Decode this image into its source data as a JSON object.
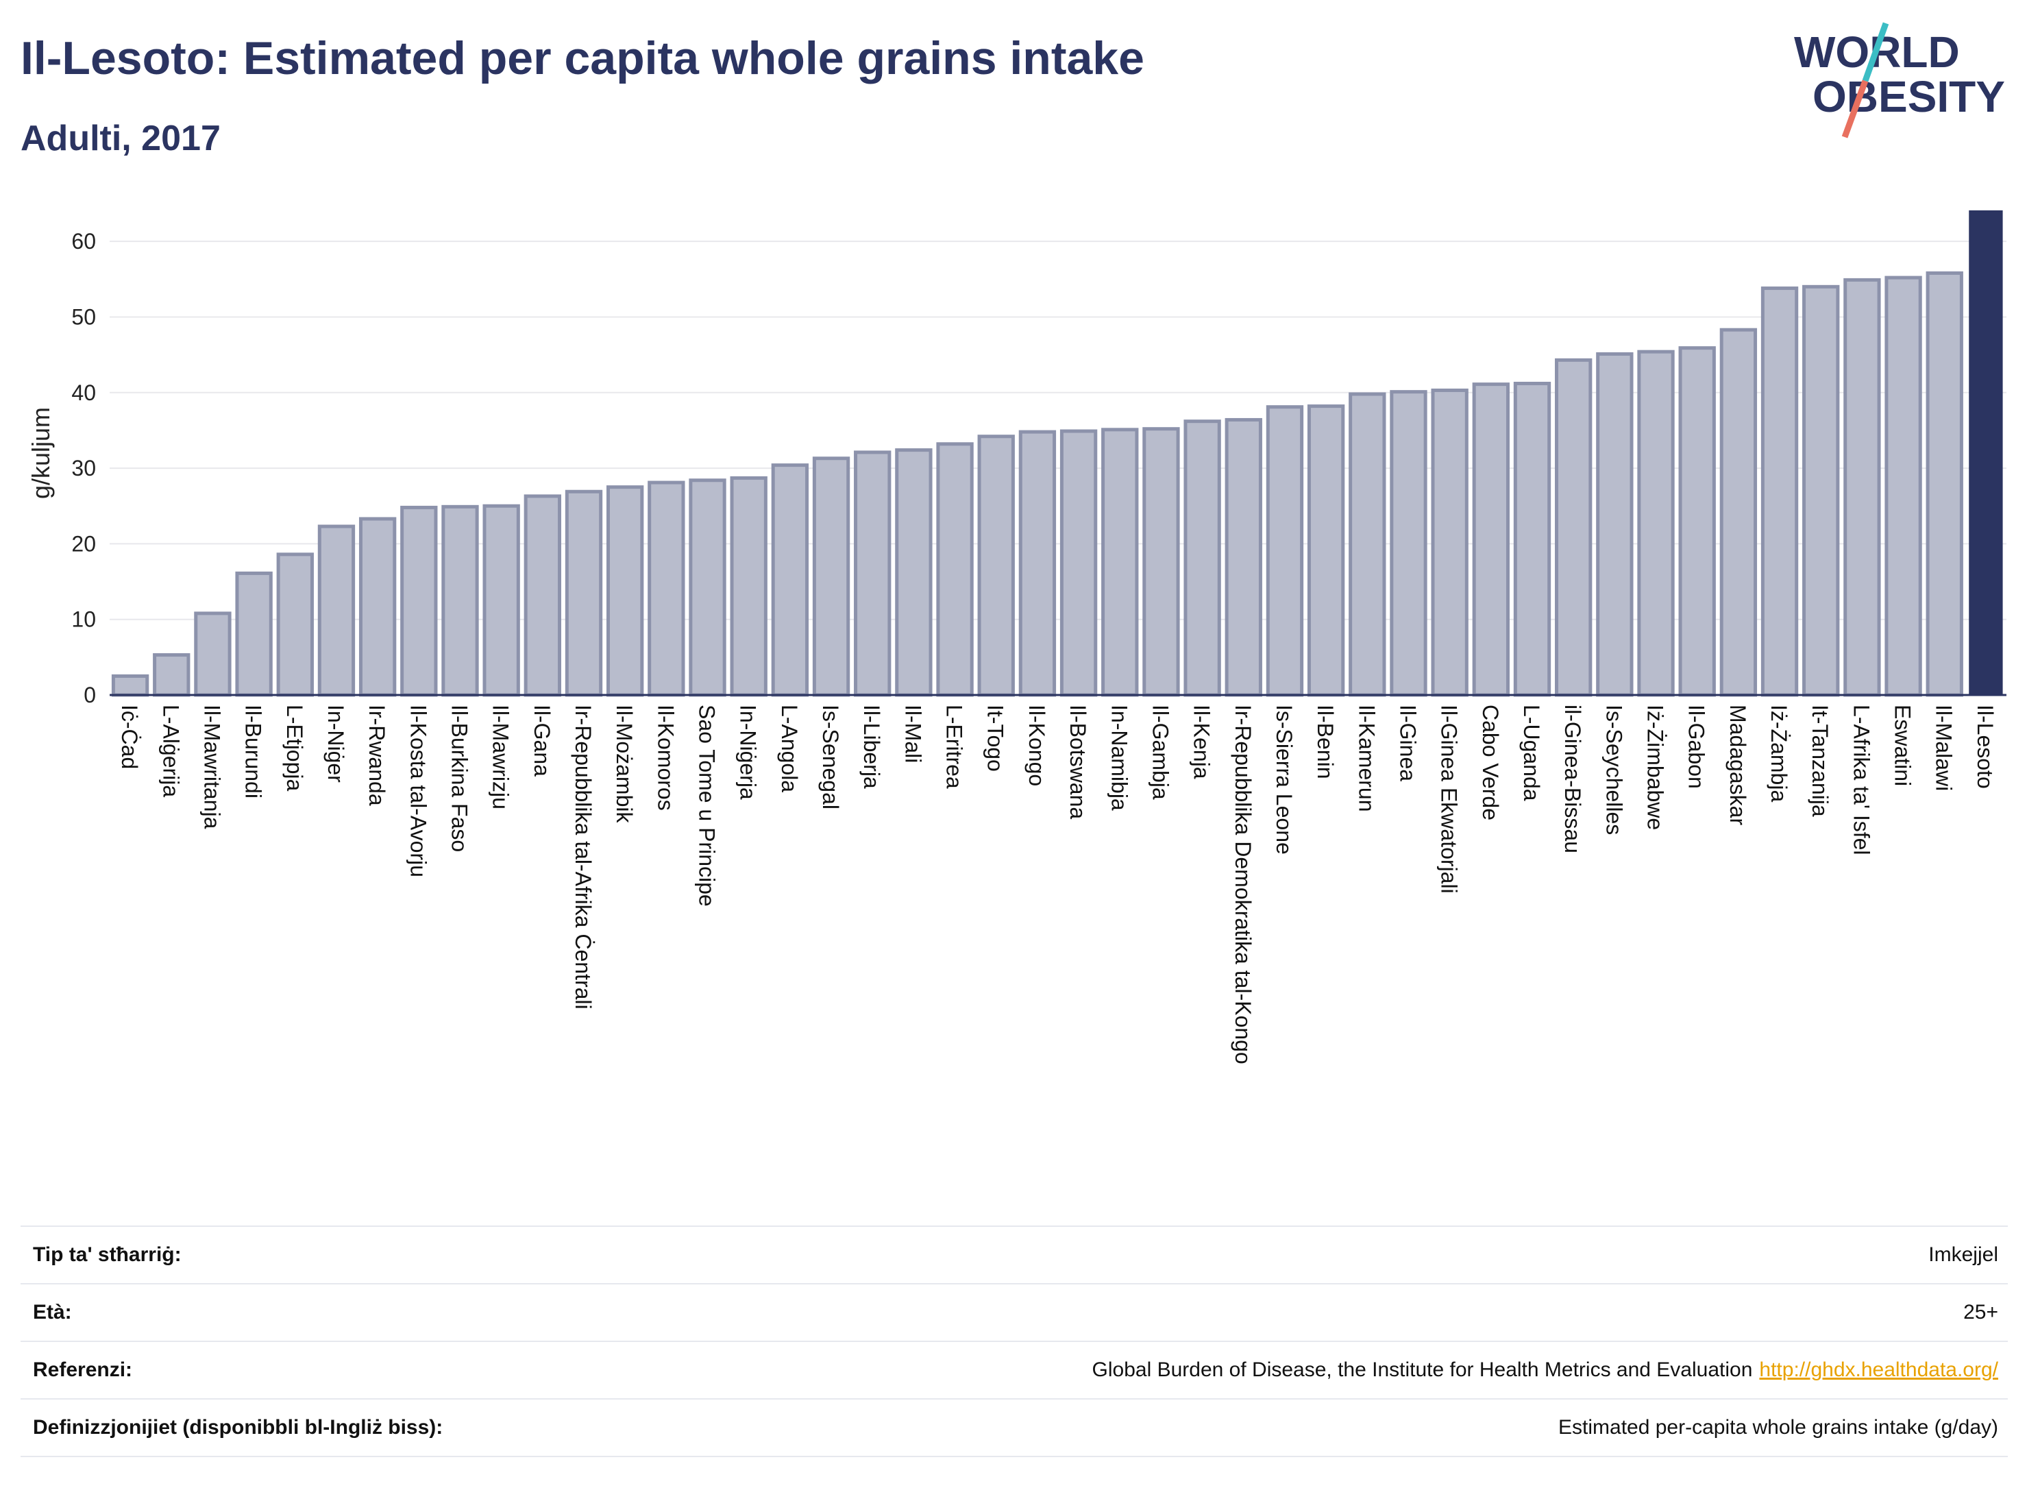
{
  "title": "Il-Lesoto: Estimated per capita whole grains intake",
  "subtitle": "Adulti, 2017",
  "logo": {
    "line1": "WORLD",
    "line2": "OBESITY",
    "accent_teal": "#3bbdc4",
    "accent_coral": "#e8705f"
  },
  "colors": {
    "bar": "#b8bccc",
    "bar_border": "#8c92ab",
    "highlight": "#2b3461",
    "grid": "#e8e8ec",
    "axis": "#2b3461"
  },
  "chart_data": {
    "type": "bar",
    "ylabel": "g/kuljum",
    "xlabel": "",
    "ylim": [
      0,
      64
    ],
    "yticks": [
      0,
      10,
      20,
      30,
      40,
      50,
      60
    ],
    "highlight": "Il-Lesoto",
    "categories": [
      "Iċ-Ċad",
      "L-Alġerija",
      "Il-Mawritanja",
      "Il-Burundi",
      "L-Etjopja",
      "In-Niġer",
      "Ir-Rwanda",
      "Il-Kosta tal-Avorju",
      "Il-Burkina Faso",
      "Il-Mawrizju",
      "Il-Gana",
      "Ir-Repubblika tal-Afrika Ċentrali",
      "Il-Możambik",
      "Il-Komoros",
      "Sao Tome u Principe",
      "In-Niġerja",
      "L-Angola",
      "Is-Senegal",
      "Il-Liberja",
      "Il-Mali",
      "L-Eritrea",
      "It-Togo",
      "Il-Kongo",
      "Il-Botswana",
      "In-Namibja",
      "Il-Gambja",
      "Il-Kenja",
      "Ir-Repubblika Demokratika tal-Kongo",
      "Is-Sierra Leone",
      "Il-Benin",
      "Il-Kamerun",
      "Il-Ginea",
      "Il-Ginea Ekwatorjali",
      "Cabo Verde",
      "L-Uganda",
      "il-Ginea-Bissau",
      "Is-Seychelles",
      "Iż-Żimbabwe",
      "Il-Gabon",
      "Madagaskar",
      "Iż-Żambja",
      "It-Tanzanija",
      "L-Afrika ta' Isfel",
      "Eswatini",
      "Il-Malawi",
      "Il-Lesoto"
    ],
    "values": [
      2.5,
      5.3,
      10.8,
      16.1,
      18.6,
      22.3,
      23.3,
      24.8,
      24.9,
      25.0,
      26.3,
      26.9,
      27.5,
      28.1,
      28.4,
      28.7,
      30.4,
      31.3,
      32.1,
      32.4,
      33.2,
      34.2,
      34.8,
      34.9,
      35.1,
      35.2,
      36.2,
      36.4,
      38.1,
      38.2,
      39.8,
      40.1,
      40.3,
      41.1,
      41.2,
      44.3,
      45.1,
      45.4,
      45.9,
      48.3,
      53.8,
      54.0,
      54.9,
      55.2,
      55.8,
      64.1
    ]
  },
  "footer": [
    {
      "label": "Tip ta' stħarriġ:",
      "value": "Imkejjel"
    },
    {
      "label": "Età:",
      "value": "25+"
    },
    {
      "label": "Referenzi:",
      "value": "Global Burden of Disease, the Institute for Health Metrics and Evaluation",
      "link": "http://ghdx.healthdata.org/"
    },
    {
      "label": "Definizzjonijiet (disponibbli bl-Ingliż biss):",
      "value": "Estimated per-capita whole grains intake (g/day)"
    }
  ]
}
